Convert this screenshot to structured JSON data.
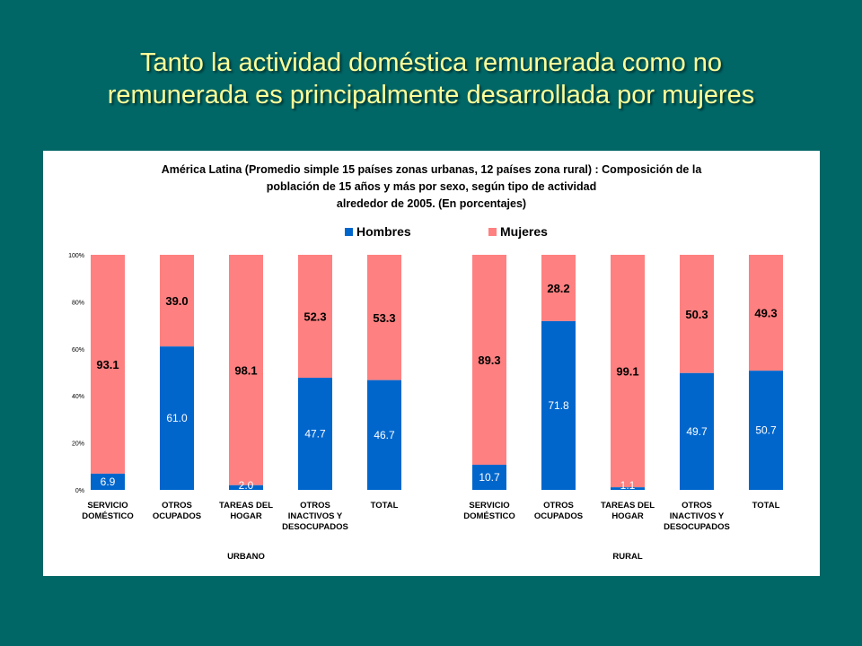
{
  "slide": {
    "title_line1": "Tanto la actividad doméstica remunerada como no",
    "title_line2": "remunerada es principalmente desarrollada por mujeres"
  },
  "chart_data": {
    "type": "stacked-bar",
    "title_lines": [
      "América Latina (Promedio simple 15 países zonas urbanas, 12 países zona rural) : Composición de la",
      "población de 15 años y más por sexo, según tipo de actividad",
      "alrededor de 2005. (En porcentajes)"
    ],
    "legend": {
      "hombres": "Hombres",
      "mujeres": "Mujeres"
    },
    "colors": {
      "hombres": "#0066CC",
      "mujeres": "#FF8080"
    },
    "ylim": [
      0,
      100
    ],
    "y_ticks": [
      {
        "value": 0,
        "label": "0%"
      },
      {
        "value": 20,
        "label": "20%"
      },
      {
        "value": 40,
        "label": "40%"
      },
      {
        "value": 60,
        "label": "60%"
      },
      {
        "value": 80,
        "label": "80%"
      },
      {
        "value": 100,
        "label": "100%"
      }
    ],
    "groups": [
      {
        "name": "URBANO",
        "categories": [
          {
            "label": [
              "SERVICIO",
              "DOMÉSTICO"
            ],
            "hombres": 6.9,
            "mujeres": 93.1
          },
          {
            "label": [
              "OTROS",
              "OCUPADOS"
            ],
            "hombres": 61.0,
            "mujeres": 39.0
          },
          {
            "label": [
              "TAREAS DEL",
              "HOGAR"
            ],
            "hombres": 2.0,
            "mujeres": 98.1
          },
          {
            "label": [
              "OTROS",
              "INACTIVOS Y",
              "DESOCUPADOS"
            ],
            "hombres": 47.7,
            "mujeres": 52.3
          },
          {
            "label": [
              "TOTAL"
            ],
            "hombres": 46.7,
            "mujeres": 53.3
          }
        ]
      },
      {
        "name": "RURAL",
        "categories": [
          {
            "label": [
              "SERVICIO",
              "DOMÉSTICO"
            ],
            "hombres": 10.7,
            "mujeres": 89.3
          },
          {
            "label": [
              "OTROS",
              "OCUPADOS"
            ],
            "hombres": 71.8,
            "mujeres": 28.2
          },
          {
            "label": [
              "TAREAS DEL",
              "HOGAR"
            ],
            "hombres": 1.1,
            "mujeres": 99.1
          },
          {
            "label": [
              "OTROS",
              "INACTIVOS Y",
              "DESOCUPADOS"
            ],
            "hombres": 49.7,
            "mujeres": 50.3
          },
          {
            "label": [
              "TOTAL"
            ],
            "hombres": 50.7,
            "mujeres": 49.3
          }
        ]
      }
    ]
  }
}
